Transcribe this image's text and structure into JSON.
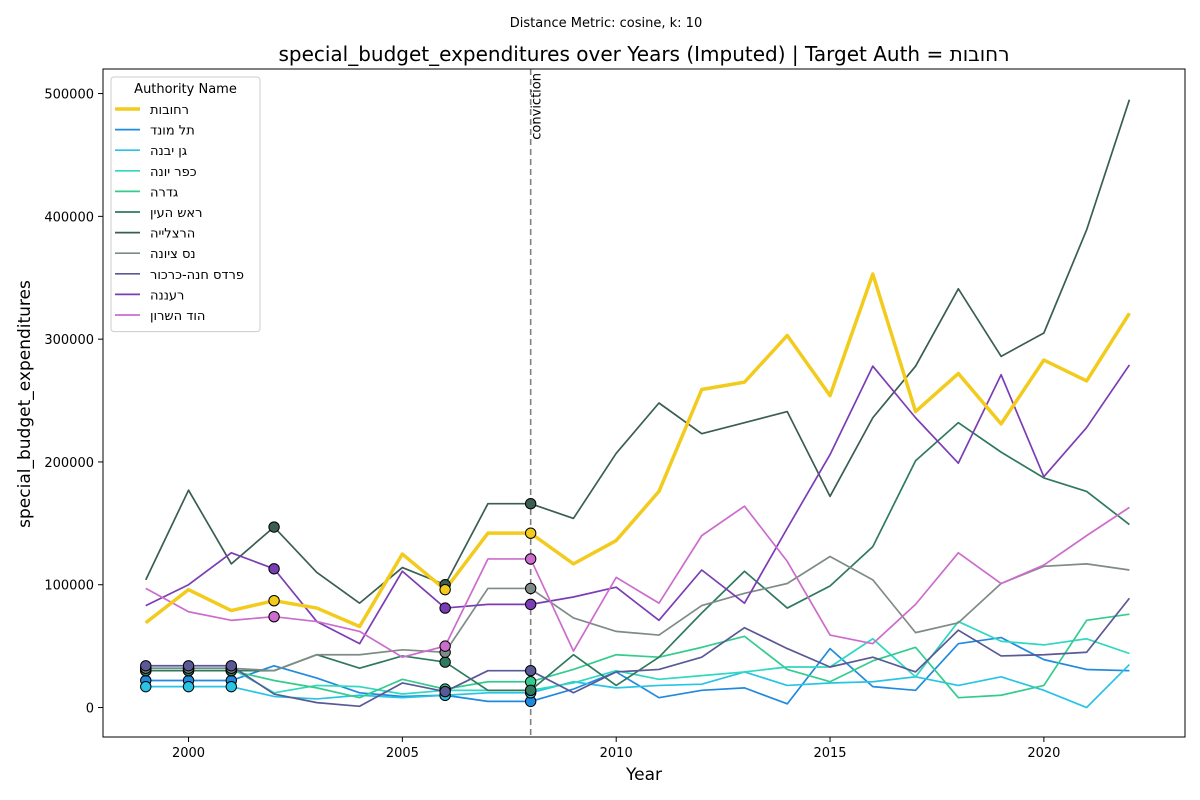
{
  "chart_data": {
    "type": "line",
    "suptitle": "Distance Metric: cosine, k: 10",
    "title": "special_budget_expenditures over Years (Imputed) | Target Auth = רחובות",
    "xlabel": "Year",
    "ylabel": "special_budget_expenditures",
    "xlim": [
      1998,
      2023.3
    ],
    "ylim": [
      -24000,
      520000
    ],
    "xticks": [
      2000,
      2005,
      2010,
      2015,
      2020
    ],
    "yticks": [
      0,
      100000,
      200000,
      300000,
      400000,
      500000
    ],
    "grid": false,
    "legend": {
      "title": "Authority Name",
      "position": "top-left"
    },
    "x": [
      1999,
      2000,
      2001,
      2002,
      2003,
      2004,
      2005,
      2006,
      2007,
      2008,
      2009,
      2010,
      2011,
      2012,
      2013,
      2014,
      2015,
      2016,
      2017,
      2018,
      2019,
      2020,
      2021,
      2022
    ],
    "vline": {
      "x": 2008,
      "label": "conviction",
      "color": "#808080"
    },
    "series": [
      {
        "name": "רחובות",
        "color": "#f2cb1d",
        "width": 3.5,
        "target": true,
        "values": [
          69000,
          96000,
          79000,
          87000,
          81000,
          66000,
          125000,
          96000,
          142000,
          142000,
          117000,
          136000,
          176000,
          259000,
          265000,
          303000,
          254000,
          353000,
          241000,
          272000,
          231000,
          283000,
          266000,
          321000
        ],
        "imputed": [
          2002,
          2006,
          2008
        ]
      },
      {
        "name": "תל מונד",
        "color": "#1f8ae0",
        "width": 1.7,
        "values": [
          22000,
          22000,
          22000,
          34000,
          24000,
          12000,
          9000,
          10000,
          5000,
          5000,
          15000,
          29000,
          8000,
          14000,
          16000,
          3000,
          48000,
          17000,
          14000,
          52000,
          57000,
          39000,
          31000,
          30000
        ],
        "imputed": [
          1999,
          2000,
          2001,
          2006,
          2008
        ]
      },
      {
        "name": "גן יבנה",
        "color": "#29c4e4",
        "width": 1.7,
        "values": [
          17000,
          17000,
          17000,
          9000,
          7000,
          10000,
          8000,
          10000,
          12000,
          12000,
          21000,
          16000,
          18000,
          19000,
          29000,
          18000,
          20000,
          21000,
          25000,
          18000,
          25000,
          14000,
          0,
          35000
        ],
        "imputed": [
          1999,
          2000,
          2001,
          2006,
          2008
        ]
      },
      {
        "name": "כפר יונה",
        "color": "#2fd8c0",
        "width": 1.7,
        "values": [
          32000,
          32000,
          32000,
          12000,
          18000,
          17000,
          11000,
          14000,
          14000,
          14000,
          20000,
          30000,
          23000,
          26000,
          29000,
          33000,
          33000,
          56000,
          25000,
          70000,
          54000,
          51000,
          56000,
          44000
        ],
        "imputed": [
          1999,
          2000,
          2001,
          2006,
          2008
        ]
      },
      {
        "name": "גדרה",
        "color": "#33cc8e",
        "width": 1.7,
        "values": [
          30000,
          30000,
          30000,
          22000,
          16000,
          8000,
          23000,
          15000,
          21000,
          21000,
          31000,
          43000,
          41000,
          49000,
          58000,
          31000,
          21000,
          38000,
          49000,
          8000,
          10000,
          18000,
          71000,
          76000
        ],
        "imputed": [
          1999,
          2000,
          2001,
          2006,
          2008
        ]
      },
      {
        "name": "ראש העין",
        "color": "#2f7a5e",
        "width": 1.7,
        "values": [
          30000,
          30000,
          30000,
          30000,
          43000,
          32000,
          42000,
          37000,
          14000,
          14000,
          43000,
          18000,
          41000,
          77000,
          111000,
          81000,
          99000,
          131000,
          201000,
          232000,
          208000,
          187000,
          176000,
          149000
        ],
        "imputed": [
          1999,
          2000,
          2001,
          2006,
          2008
        ]
      },
      {
        "name": "הרצלייה",
        "color": "#3a5e50",
        "width": 1.7,
        "values": [
          104000,
          177000,
          117000,
          147000,
          110000,
          85000,
          114000,
          100000,
          166000,
          166000,
          154000,
          207000,
          248000,
          223000,
          232000,
          241000,
          172000,
          236000,
          278000,
          341000,
          286000,
          305000,
          389000,
          495000
        ],
        "imputed": [
          2002,
          2006,
          2008
        ]
      },
      {
        "name": "נס ציונה",
        "color": "#7f8b86",
        "width": 1.7,
        "values": [
          32000,
          32000,
          32000,
          30000,
          43000,
          43000,
          47000,
          45000,
          97000,
          97000,
          73000,
          62000,
          59000,
          83000,
          93000,
          101000,
          123000,
          104000,
          61000,
          69000,
          101000,
          115000,
          117000,
          112000
        ],
        "imputed": [
          1999,
          2000,
          2001,
          2006,
          2008
        ]
      },
      {
        "name": "פרדס חנה-כרכור",
        "color": "#5a5996",
        "width": 1.7,
        "values": [
          34000,
          34000,
          34000,
          11000,
          4000,
          1000,
          20000,
          13000,
          30000,
          30000,
          12000,
          29000,
          31000,
          41000,
          65000,
          48000,
          33000,
          41000,
          29000,
          63000,
          42000,
          43000,
          45000,
          89000
        ],
        "imputed": [
          1999,
          2000,
          2001,
          2006,
          2008
        ]
      },
      {
        "name": "רעננה",
        "color": "#7b3db5",
        "width": 1.7,
        "values": [
          83000,
          100000,
          126000,
          113000,
          70000,
          52000,
          111000,
          81000,
          84000,
          84000,
          90000,
          98000,
          71000,
          112000,
          85000,
          146000,
          206000,
          278000,
          236000,
          199000,
          271000,
          188000,
          228000,
          279000
        ],
        "imputed": [
          2002,
          2006,
          2008
        ]
      },
      {
        "name": "הוד השרון",
        "color": "#cc6ccd",
        "width": 1.7,
        "values": [
          97000,
          78000,
          71000,
          74000,
          70000,
          62000,
          41000,
          50000,
          121000,
          121000,
          46000,
          106000,
          85000,
          140000,
          164000,
          119000,
          59000,
          52000,
          84000,
          126000,
          101000,
          116000,
          140000,
          163000
        ],
        "imputed": [
          2002,
          2006,
          2008
        ]
      }
    ]
  }
}
